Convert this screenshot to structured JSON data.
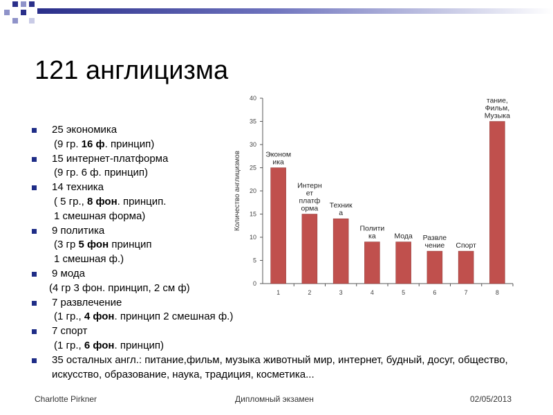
{
  "slide": {
    "title": "121 англицизма",
    "bullets": [
      {
        "main": "25 экономика",
        "subs": [
          [
            {
              "t": "(9 гр. "
            },
            {
              "t": "16 ф",
              "b": true
            },
            {
              "t": ". принцип)"
            }
          ]
        ]
      },
      {
        "main": "15 интернет-платформа",
        "subs": [
          [
            {
              "t": "(9 гр. 6 ф. принцип)"
            }
          ]
        ]
      },
      {
        "main": "14 техника",
        "subs": [
          [
            {
              "t": "( 5 гр., "
            },
            {
              "t": "8 фон",
              "b": true
            },
            {
              "t": ". принцип."
            }
          ],
          [
            {
              "t": "1 смешная форма)"
            }
          ]
        ]
      },
      {
        "main": "9 политика",
        "subs": [
          [
            {
              "t": "(3 гр "
            },
            {
              "t": "5 фон",
              "b": true
            },
            {
              "t": " принцип"
            }
          ],
          [
            {
              "t": "1 смешная ф.)"
            }
          ]
        ]
      },
      {
        "main": "9 мода",
        "subs": [
          [
            {
              "t": "(4 гр 3 фон. принцип, 2 см ф)"
            }
          ]
        ],
        "subShift": true
      },
      {
        "main": "7 развлечение",
        "subs": [
          [
            {
              "t": "(1 гр., "
            },
            {
              "t": "4 фон",
              "b": true
            },
            {
              "t": ". принцип 2 смешная ф.)"
            }
          ]
        ]
      },
      {
        "main": "7 спорт",
        "subs": [
          [
            {
              "t": "(1 гр., "
            },
            {
              "t": "6 фон",
              "b": true
            },
            {
              "t": ". принцип)"
            }
          ]
        ]
      },
      {
        "main": "35 осталных англ.: питание,фильм, музыка животный мир, интернет, будный, досуг, общество, искусство, образование, наука, традиция, косметика...",
        "subs": []
      }
    ],
    "footer": {
      "author": "Charlotte Pirkner",
      "center": "Дипломный экзамен",
      "date": "02/05/2013"
    }
  },
  "colors": {
    "bar": "#c0504d",
    "bar_edge": "#8c3836",
    "bullet": "#1f2d87",
    "topbar_dark": "#2a2f8a"
  },
  "chart_data": {
    "type": "bar",
    "categories": [
      "1",
      "2",
      "3",
      "4",
      "5",
      "6",
      "7",
      "8"
    ],
    "values": [
      25,
      15,
      14,
      9,
      9,
      7,
      7,
      35
    ],
    "bar_labels": [
      [
        "Эконом",
        "ика"
      ],
      [
        "Интерн",
        "ет",
        "платф",
        "орма"
      ],
      [
        "Техник",
        "а"
      ],
      [
        "Полити",
        "ка"
      ],
      [
        "Мода"
      ],
      [
        "Развле",
        "чение"
      ],
      [
        "Спорт"
      ],
      [
        "тание,",
        "Фильм,",
        "Музыка"
      ]
    ],
    "ylabel": "Количество англицизмов",
    "xlabel": "",
    "ylim": [
      0,
      40
    ],
    "yticks": [
      0,
      5,
      10,
      15,
      20,
      25,
      30,
      35,
      40
    ],
    "grid": false
  }
}
